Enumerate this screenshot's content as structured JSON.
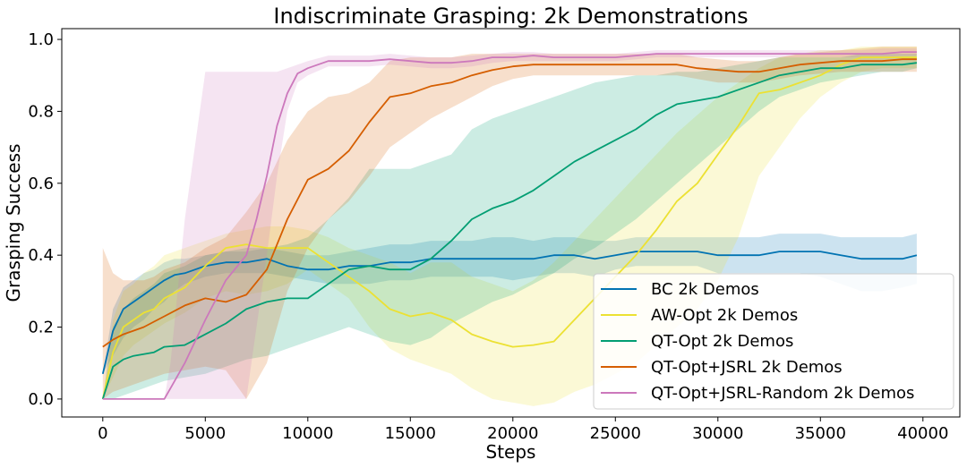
{
  "chart_data": {
    "type": "line",
    "title": "Indiscriminate Grasping: 2k Demonstrations",
    "xlabel": "Steps",
    "ylabel": "Grasping Success",
    "xlim": [
      -2000,
      41800
    ],
    "ylim": [
      -0.05,
      1.03
    ],
    "xticks": [
      0,
      5000,
      10000,
      15000,
      20000,
      25000,
      30000,
      35000,
      40000
    ],
    "xtick_labels": [
      "0",
      "5000",
      "10000",
      "15000",
      "20000",
      "25000",
      "30000",
      "35000",
      "40000"
    ],
    "yticks": [
      0.0,
      0.2,
      0.4,
      0.6,
      0.8,
      1.0
    ],
    "ytick_labels": [
      "0.0",
      "0.2",
      "0.4",
      "0.6",
      "0.8",
      "1.0"
    ],
    "grid": false,
    "legend_position": "lower-right",
    "series": [
      {
        "name": "BC 2k Demos",
        "color": "#0173b2",
        "x": [
          0,
          500,
          1000,
          1500,
          2000,
          2500,
          3000,
          3500,
          4000,
          5000,
          6000,
          7000,
          8000,
          9000,
          10000,
          11000,
          12000,
          13000,
          14000,
          15000,
          16000,
          17000,
          18000,
          19000,
          20000,
          21000,
          22000,
          23000,
          24000,
          25000,
          26000,
          27000,
          28000,
          29000,
          30000,
          31000,
          32000,
          33000,
          34000,
          35000,
          36000,
          37000,
          38000,
          39000,
          39700
        ],
        "y": [
          0.07,
          0.19,
          0.25,
          0.27,
          0.29,
          0.31,
          0.33,
          0.345,
          0.35,
          0.37,
          0.38,
          0.38,
          0.39,
          0.37,
          0.36,
          0.36,
          0.37,
          0.37,
          0.38,
          0.38,
          0.39,
          0.39,
          0.39,
          0.39,
          0.39,
          0.39,
          0.4,
          0.4,
          0.39,
          0.4,
          0.41,
          0.41,
          0.41,
          0.41,
          0.4,
          0.4,
          0.4,
          0.41,
          0.41,
          0.41,
          0.4,
          0.39,
          0.39,
          0.39,
          0.4
        ],
        "lower": [
          0.07,
          0.12,
          0.17,
          0.2,
          0.22,
          0.25,
          0.27,
          0.3,
          0.32,
          0.34,
          0.35,
          0.35,
          0.35,
          0.34,
          0.33,
          0.32,
          0.32,
          0.32,
          0.33,
          0.33,
          0.34,
          0.34,
          0.34,
          0.34,
          0.33,
          0.34,
          0.35,
          0.35,
          0.34,
          0.36,
          0.37,
          0.37,
          0.37,
          0.37,
          0.35,
          0.35,
          0.35,
          0.35,
          0.35,
          0.34,
          0.32,
          0.3,
          0.3,
          0.31,
          0.32
        ],
        "upper": [
          0.07,
          0.25,
          0.31,
          0.33,
          0.35,
          0.36,
          0.38,
          0.39,
          0.39,
          0.4,
          0.41,
          0.41,
          0.42,
          0.41,
          0.4,
          0.4,
          0.41,
          0.42,
          0.43,
          0.43,
          0.44,
          0.44,
          0.44,
          0.45,
          0.45,
          0.44,
          0.45,
          0.45,
          0.44,
          0.44,
          0.45,
          0.45,
          0.45,
          0.45,
          0.45,
          0.45,
          0.45,
          0.46,
          0.46,
          0.46,
          0.45,
          0.45,
          0.45,
          0.45,
          0.46
        ]
      },
      {
        "name": "AW-Opt 2k Demos",
        "color": "#ece133",
        "x": [
          0,
          500,
          1000,
          1500,
          2000,
          2500,
          3000,
          4000,
          5000,
          6000,
          7000,
          8000,
          9000,
          10000,
          11000,
          12000,
          13000,
          14000,
          15000,
          16000,
          17000,
          18000,
          19000,
          20000,
          21000,
          22000,
          23000,
          24000,
          25000,
          26000,
          27000,
          28000,
          29000,
          30000,
          31000,
          32000,
          33000,
          34000,
          35000,
          36000,
          37000,
          38000,
          39000,
          39700
        ],
        "y": [
          0.0,
          0.13,
          0.2,
          0.22,
          0.24,
          0.25,
          0.28,
          0.31,
          0.37,
          0.42,
          0.43,
          0.42,
          0.42,
          0.42,
          0.38,
          0.34,
          0.3,
          0.25,
          0.23,
          0.24,
          0.22,
          0.18,
          0.16,
          0.145,
          0.15,
          0.16,
          0.22,
          0.28,
          0.34,
          0.4,
          0.47,
          0.55,
          0.6,
          0.68,
          0.76,
          0.85,
          0.86,
          0.88,
          0.9,
          0.93,
          0.95,
          0.95,
          0.95,
          0.95
        ],
        "lower": [
          0.0,
          0.06,
          0.12,
          0.15,
          0.17,
          0.19,
          0.21,
          0.24,
          0.28,
          0.3,
          0.29,
          0.3,
          0.32,
          0.36,
          0.32,
          0.28,
          0.2,
          0.14,
          0.11,
          0.09,
          0.07,
          0.03,
          0.0,
          -0.01,
          -0.02,
          -0.01,
          0.02,
          0.04,
          0.07,
          0.1,
          0.15,
          0.2,
          0.25,
          0.33,
          0.45,
          0.62,
          0.7,
          0.78,
          0.84,
          0.88,
          0.91,
          0.92,
          0.92,
          0.92
        ],
        "upper": [
          0.0,
          0.22,
          0.3,
          0.32,
          0.35,
          0.37,
          0.4,
          0.42,
          0.44,
          0.46,
          0.47,
          0.48,
          0.48,
          0.47,
          0.45,
          0.42,
          0.4,
          0.38,
          0.35,
          0.38,
          0.38,
          0.34,
          0.32,
          0.3,
          0.33,
          0.38,
          0.44,
          0.5,
          0.56,
          0.62,
          0.68,
          0.74,
          0.79,
          0.84,
          0.88,
          0.92,
          0.95,
          0.96,
          0.97,
          0.97,
          0.98,
          0.98,
          0.98,
          0.98
        ]
      },
      {
        "name": "QT-Opt 2k Demos",
        "color": "#029e73",
        "x": [
          0,
          500,
          1000,
          1500,
          2000,
          2500,
          3000,
          4000,
          5000,
          6000,
          7000,
          8000,
          9000,
          10000,
          11000,
          12000,
          13000,
          14000,
          15000,
          16000,
          17000,
          18000,
          19000,
          20000,
          21000,
          22000,
          23000,
          24000,
          25000,
          26000,
          27000,
          28000,
          29000,
          30000,
          31000,
          32000,
          33000,
          34000,
          35000,
          36000,
          37000,
          38000,
          39000,
          39700
        ],
        "y": [
          0.0,
          0.09,
          0.11,
          0.12,
          0.125,
          0.13,
          0.145,
          0.15,
          0.18,
          0.21,
          0.25,
          0.27,
          0.28,
          0.28,
          0.32,
          0.36,
          0.37,
          0.36,
          0.36,
          0.39,
          0.44,
          0.5,
          0.53,
          0.55,
          0.58,
          0.62,
          0.66,
          0.69,
          0.72,
          0.75,
          0.79,
          0.82,
          0.83,
          0.84,
          0.86,
          0.88,
          0.9,
          0.91,
          0.92,
          0.92,
          0.93,
          0.93,
          0.93,
          0.935
        ],
        "lower": [
          0.0,
          0.0,
          0.01,
          0.02,
          0.03,
          0.04,
          0.05,
          0.06,
          0.07,
          0.09,
          0.11,
          0.12,
          0.14,
          0.16,
          0.18,
          0.2,
          0.18,
          0.16,
          0.15,
          0.17,
          0.21,
          0.24,
          0.27,
          0.29,
          0.32,
          0.35,
          0.39,
          0.42,
          0.46,
          0.5,
          0.55,
          0.6,
          0.65,
          0.7,
          0.75,
          0.8,
          0.84,
          0.86,
          0.88,
          0.89,
          0.9,
          0.91,
          0.91,
          0.92
        ],
        "upper": [
          0.0,
          0.2,
          0.25,
          0.28,
          0.3,
          0.32,
          0.35,
          0.37,
          0.4,
          0.41,
          0.42,
          0.42,
          0.43,
          0.45,
          0.5,
          0.56,
          0.64,
          0.64,
          0.64,
          0.66,
          0.68,
          0.75,
          0.78,
          0.8,
          0.82,
          0.84,
          0.86,
          0.88,
          0.89,
          0.9,
          0.9,
          0.91,
          0.91,
          0.92,
          0.93,
          0.94,
          0.95,
          0.95,
          0.95,
          0.95,
          0.96,
          0.96,
          0.96,
          0.96
        ]
      },
      {
        "name": "QT-Opt+JSRL 2k Demos",
        "color": "#d55e00",
        "x": [
          0,
          500,
          1000,
          1500,
          2000,
          2500,
          3000,
          4000,
          5000,
          6000,
          7000,
          8000,
          9000,
          10000,
          11000,
          12000,
          13000,
          14000,
          15000,
          16000,
          17000,
          18000,
          19000,
          20000,
          21000,
          22000,
          23000,
          24000,
          25000,
          26000,
          27000,
          28000,
          29000,
          30000,
          31000,
          32000,
          33000,
          34000,
          35000,
          36000,
          37000,
          38000,
          39000,
          39700
        ],
        "y": [
          0.145,
          0.165,
          0.18,
          0.19,
          0.2,
          0.215,
          0.23,
          0.26,
          0.28,
          0.27,
          0.29,
          0.36,
          0.5,
          0.61,
          0.64,
          0.69,
          0.77,
          0.84,
          0.85,
          0.87,
          0.88,
          0.9,
          0.915,
          0.925,
          0.93,
          0.93,
          0.93,
          0.93,
          0.93,
          0.93,
          0.93,
          0.93,
          0.92,
          0.915,
          0.91,
          0.91,
          0.92,
          0.93,
          0.935,
          0.94,
          0.94,
          0.94,
          0.945,
          0.945
        ],
        "lower": [
          0.0,
          0.02,
          0.03,
          0.04,
          0.05,
          0.06,
          0.07,
          0.08,
          0.09,
          0.08,
          0.0,
          0.1,
          0.3,
          0.42,
          0.5,
          0.55,
          0.62,
          0.7,
          0.74,
          0.78,
          0.81,
          0.84,
          0.87,
          0.89,
          0.9,
          0.9,
          0.9,
          0.9,
          0.9,
          0.9,
          0.9,
          0.9,
          0.89,
          0.88,
          0.88,
          0.88,
          0.89,
          0.9,
          0.905,
          0.91,
          0.91,
          0.91,
          0.91,
          0.91
        ],
        "upper": [
          0.42,
          0.35,
          0.33,
          0.33,
          0.33,
          0.34,
          0.36,
          0.38,
          0.42,
          0.45,
          0.52,
          0.6,
          0.72,
          0.8,
          0.84,
          0.85,
          0.88,
          0.94,
          0.95,
          0.95,
          0.95,
          0.96,
          0.96,
          0.96,
          0.96,
          0.96,
          0.96,
          0.96,
          0.96,
          0.96,
          0.96,
          0.96,
          0.95,
          0.945,
          0.94,
          0.94,
          0.95,
          0.96,
          0.965,
          0.97,
          0.975,
          0.98,
          0.98,
          0.98
        ]
      },
      {
        "name": "QT-Opt+JSRL-Random 2k Demos",
        "color": "#cc78bc",
        "x": [
          0,
          1000,
          2000,
          3000,
          3300,
          4000,
          5000,
          6000,
          7000,
          7500,
          8000,
          8500,
          9000,
          9500,
          10000,
          11000,
          12000,
          13000,
          14000,
          15000,
          16000,
          17000,
          18000,
          19000,
          20000,
          21000,
          22000,
          23000,
          24000,
          25000,
          26000,
          27000,
          28000,
          29000,
          30000,
          31000,
          32000,
          33000,
          34000,
          35000,
          36000,
          37000,
          38000,
          39000,
          39700
        ],
        "y": [
          0.0,
          0.0,
          0.0,
          0.0,
          0.03,
          0.1,
          0.22,
          0.33,
          0.4,
          0.5,
          0.62,
          0.76,
          0.85,
          0.905,
          0.92,
          0.94,
          0.94,
          0.94,
          0.945,
          0.94,
          0.935,
          0.935,
          0.94,
          0.95,
          0.95,
          0.955,
          0.95,
          0.95,
          0.95,
          0.95,
          0.955,
          0.96,
          0.96,
          0.96,
          0.96,
          0.96,
          0.96,
          0.96,
          0.96,
          0.96,
          0.96,
          0.96,
          0.96,
          0.965,
          0.965
        ],
        "lower": [
          0.0,
          0.0,
          0.0,
          0.0,
          0.0,
          0.0,
          0.0,
          0.0,
          0.0,
          0.2,
          0.4,
          0.62,
          0.8,
          0.88,
          0.9,
          0.925,
          0.925,
          0.925,
          0.93,
          0.925,
          0.92,
          0.92,
          0.925,
          0.935,
          0.94,
          0.94,
          0.94,
          0.94,
          0.94,
          0.94,
          0.945,
          0.95,
          0.95,
          0.95,
          0.95,
          0.95,
          0.95,
          0.95,
          0.95,
          0.95,
          0.95,
          0.95,
          0.95,
          0.955,
          0.955
        ],
        "upper": [
          0.0,
          0.0,
          0.0,
          0.0,
          0.1,
          0.5,
          0.91,
          0.91,
          0.91,
          0.91,
          0.91,
          0.91,
          0.92,
          0.93,
          0.94,
          0.955,
          0.955,
          0.955,
          0.96,
          0.955,
          0.95,
          0.95,
          0.955,
          0.96,
          0.965,
          0.965,
          0.96,
          0.96,
          0.96,
          0.96,
          0.965,
          0.97,
          0.97,
          0.97,
          0.97,
          0.97,
          0.97,
          0.97,
          0.97,
          0.97,
          0.97,
          0.97,
          0.975,
          0.975,
          0.975
        ]
      }
    ]
  }
}
